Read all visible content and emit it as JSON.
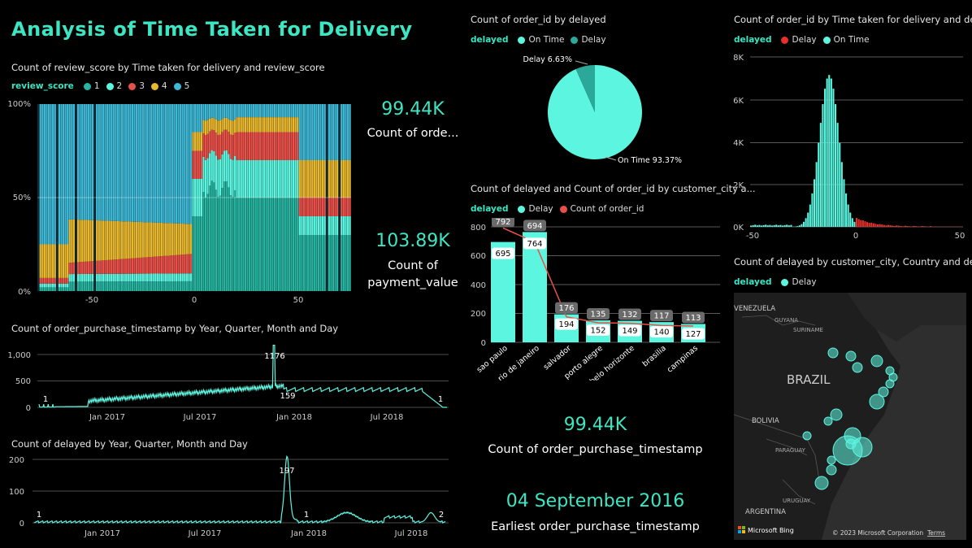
{
  "page_title": "Analysis of Time Taken for Delivery",
  "colors": {
    "teal": "#5cf5e0",
    "red": "#e8514a",
    "yellow": "#e8b830",
    "accent": "#3ce6c3"
  },
  "kpis": [
    {
      "value": "99.44K",
      "label": "Count of orde..."
    },
    {
      "value": "103.89K",
      "label": "Count of payment_value"
    },
    {
      "value": "99.44K",
      "label": "Count of order_purchase_timestamp"
    },
    {
      "value": "04 September 2016",
      "label": "Earliest order_purchase_timestamp"
    }
  ],
  "chart_data": [
    {
      "id": "review_stack",
      "type": "bar",
      "stacked": "100%",
      "title": "Count of review_score by Time taken for delivery and review_score",
      "legend_title": "review_score",
      "legend": [
        {
          "name": "1",
          "color": "#28b4a0"
        },
        {
          "name": "2",
          "color": "#5cf5e0"
        },
        {
          "name": "3",
          "color": "#e8514a"
        },
        {
          "name": "4",
          "color": "#e8b830"
        },
        {
          "name": "5",
          "color": "#3fb8d6"
        }
      ],
      "x_range": [
        -75,
        75
      ],
      "x_ticks": [
        -50,
        0,
        50
      ],
      "y_ticks": [
        "0%",
        "50%",
        "100%"
      ]
    },
    {
      "id": "purchase_ts",
      "type": "line",
      "title": "Count of order_purchase_timestamp by Year, Quarter, Month and Day",
      "y_ticks": [
        "0",
        "500",
        "1,000"
      ],
      "ylim": [
        0,
        1250
      ],
      "x_tick_labels": [
        "Jan 2017",
        "Jul 2017",
        "Jan 2018",
        "Jul 2018"
      ],
      "annotations": [
        "1",
        "1176",
        "159",
        "1"
      ]
    },
    {
      "id": "delayed_ts",
      "type": "line",
      "title": "Count of delayed by Year, Quarter, Month and Day",
      "y_ticks": [
        "0",
        "100",
        "200"
      ],
      "ylim": [
        0,
        210
      ],
      "x_tick_labels": [
        "Jan 2017",
        "Jul 2017",
        "Jan 2018",
        "Jul 2018"
      ],
      "annotations": [
        "1",
        "197",
        "1",
        "2"
      ]
    },
    {
      "id": "delay_pie",
      "type": "pie",
      "title": "Count of order_id by delayed",
      "legend_title": "delayed",
      "slices": [
        {
          "name": "On Time",
          "value": 93.37,
          "label": "On Time 93.37%",
          "color": "#5cf5e0"
        },
        {
          "name": "Delay",
          "value": 6.63,
          "label": "Delay 6.63%",
          "color": "#2aa899"
        }
      ]
    },
    {
      "id": "city_combo",
      "type": "bar",
      "title": "Count of delayed and Count of order_id by customer_city a...",
      "legend_title": "delayed",
      "legend": [
        {
          "name": "Delay",
          "color": "#5cf5e0"
        },
        {
          "name": "Count of order_id",
          "color": "#e8514a"
        }
      ],
      "categories": [
        "sao paulo",
        "rio de janeiro",
        "salvador",
        "porto alegre",
        "belo horizonte",
        "brasilia",
        "campinas"
      ],
      "series": [
        {
          "name": "Delay",
          "values": [
            695,
            764,
            194,
            152,
            149,
            140,
            127
          ]
        },
        {
          "name": "Count of order_id",
          "values": [
            792,
            694,
            176,
            135,
            132,
            117,
            113
          ]
        }
      ],
      "y_ticks": [
        "0",
        "200",
        "400",
        "600",
        "800"
      ],
      "ylim": [
        0,
        800
      ]
    },
    {
      "id": "delivery_hist",
      "type": "bar",
      "title": "Count of order_id by Time taken for delivery and delayed",
      "legend_title": "delayed",
      "legend": [
        {
          "name": "Delay",
          "color": "#e8302a"
        },
        {
          "name": "On Time",
          "color": "#5cf5e0"
        }
      ],
      "x_ticks": [
        "-50",
        "0",
        "50"
      ],
      "y_ticks": [
        "0K",
        "2K",
        "4K",
        "6K",
        "8K"
      ],
      "ylim": [
        0,
        8000
      ],
      "peak": 7150
    },
    {
      "id": "city_map",
      "type": "scatter",
      "title": "Count of delayed by customer_city, Country and delayed",
      "legend_title": "delayed",
      "legend": [
        {
          "name": "Delay",
          "color": "#5cf5e0"
        }
      ],
      "labels": {
        "venezuela": "VENEZUELA",
        "guyana": "GUYANA",
        "suriname": "SURINAME",
        "brazil": "BRAZIL",
        "bolivia": "BOLIVIA",
        "paraguay": "PARAGUAY",
        "argentina": "ARGENTINA",
        "uruguay": "URUGUAY"
      },
      "attribution": "Microsoft Bing",
      "copyright": "© 2023 Microsoft Corporation",
      "terms": "Terms"
    }
  ]
}
